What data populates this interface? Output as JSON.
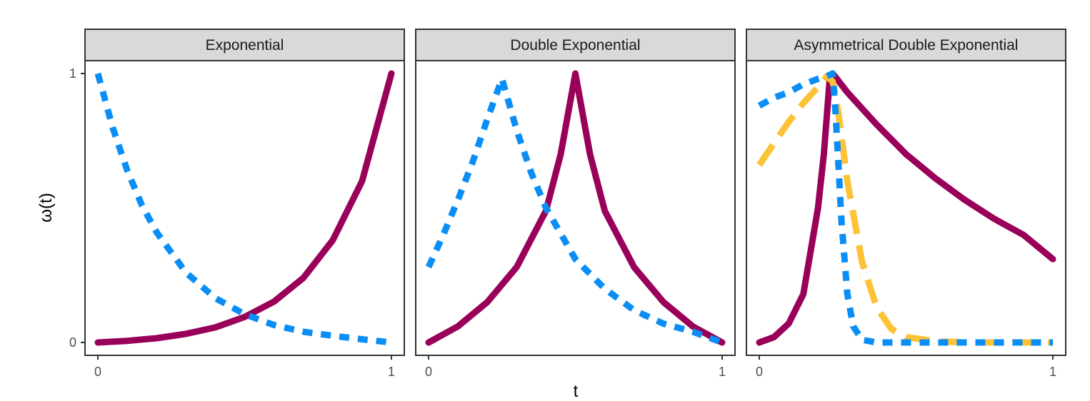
{
  "chart_data": {
    "type": "line",
    "xlabel": "t",
    "ylabel": "ω(t)",
    "xlim": [
      0,
      1
    ],
    "ylim": [
      0,
      1
    ],
    "x_ticks": [
      "0",
      "1"
    ],
    "y_ticks": [
      "0",
      "1"
    ],
    "line_colors": {
      "solid": "#99005a",
      "dotted": "#0a8ef5",
      "dashed": "#fdc236"
    },
    "panels": [
      {
        "title": "Exponential",
        "series": [
          {
            "name": "solid",
            "style": "solid",
            "x": [
              0,
              0.1,
              0.2,
              0.3,
              0.4,
              0.5,
              0.6,
              0.7,
              0.8,
              0.9,
              1
            ],
            "y": [
              0,
              0.006,
              0.016,
              0.032,
              0.056,
              0.095,
              0.152,
              0.24,
              0.38,
              0.6,
              1
            ]
          },
          {
            "name": "dotted",
            "style": "dotted",
            "x": [
              0,
              0.05,
              0.1,
              0.15,
              0.2,
              0.3,
              0.4,
              0.5,
              0.6,
              0.7,
              0.8,
              0.9,
              1
            ],
            "y": [
              1,
              0.8,
              0.64,
              0.51,
              0.41,
              0.26,
              0.165,
              0.105,
              0.065,
              0.04,
              0.025,
              0.012,
              0
            ]
          }
        ]
      },
      {
        "title": "Double Exponential",
        "series": [
          {
            "name": "solid",
            "style": "solid",
            "x": [
              0,
              0.1,
              0.2,
              0.3,
              0.4,
              0.45,
              0.5,
              0.55,
              0.6,
              0.7,
              0.8,
              0.9,
              1
            ],
            "y": [
              0,
              0.06,
              0.15,
              0.28,
              0.49,
              0.7,
              1,
              0.7,
              0.49,
              0.28,
              0.15,
              0.06,
              0
            ]
          },
          {
            "name": "dotted",
            "style": "dotted",
            "x": [
              0,
              0.05,
              0.1,
              0.15,
              0.2,
              0.25,
              0.3,
              0.35,
              0.4,
              0.5,
              0.6,
              0.7,
              0.8,
              0.9,
              1
            ],
            "y": [
              0.28,
              0.4,
              0.53,
              0.67,
              0.83,
              0.98,
              0.79,
              0.63,
              0.5,
              0.31,
              0.2,
              0.12,
              0.07,
              0.04,
              0
            ]
          }
        ]
      },
      {
        "title": "Asymmetrical Double Exponential",
        "series": [
          {
            "name": "solid",
            "style": "solid",
            "x": [
              0,
              0.05,
              0.1,
              0.15,
              0.2,
              0.22,
              0.24,
              0.25,
              0.3,
              0.35,
              0.4,
              0.5,
              0.6,
              0.7,
              0.8,
              0.9,
              1
            ],
            "y": [
              0,
              0.02,
              0.07,
              0.18,
              0.5,
              0.7,
              0.98,
              1,
              0.93,
              0.87,
              0.81,
              0.7,
              0.61,
              0.53,
              0.46,
              0.4,
              0.31
            ]
          },
          {
            "name": "dashed",
            "style": "dashed",
            "x": [
              0,
              0.05,
              0.1,
              0.15,
              0.2,
              0.23,
              0.25,
              0.27,
              0.3,
              0.35,
              0.4,
              0.45,
              0.5,
              0.6,
              0.7,
              0.8,
              0.9,
              1
            ],
            "y": [
              0.66,
              0.74,
              0.82,
              0.89,
              0.95,
              0.99,
              0.97,
              0.85,
              0.6,
              0.3,
              0.13,
              0.05,
              0.02,
              0.005,
              0,
              0,
              0,
              0
            ]
          },
          {
            "name": "dotted",
            "style": "dotted",
            "x": [
              0,
              0.05,
              0.1,
              0.15,
              0.2,
              0.23,
              0.25,
              0.26,
              0.27,
              0.28,
              0.3,
              0.32,
              0.35,
              0.4,
              0.5,
              0.6,
              0.7,
              0.8,
              0.9,
              1
            ],
            "y": [
              0.88,
              0.91,
              0.93,
              0.96,
              0.98,
              0.99,
              1,
              0.85,
              0.65,
              0.45,
              0.18,
              0.06,
              0.01,
              0,
              0,
              0,
              0,
              0,
              0,
              0
            ]
          }
        ]
      }
    ]
  }
}
